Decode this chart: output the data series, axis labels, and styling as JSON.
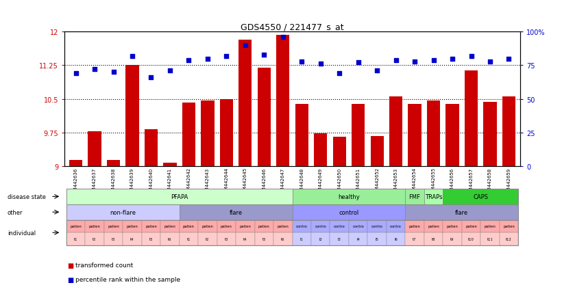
{
  "title": "GDS4550 / 221477_s_at",
  "samples": [
    "GSM442636",
    "GSM442637",
    "GSM442638",
    "GSM442639",
    "GSM442640",
    "GSM442641",
    "GSM442642",
    "GSM442643",
    "GSM442644",
    "GSM442645",
    "GSM442646",
    "GSM442647",
    "GSM442648",
    "GSM442649",
    "GSM442650",
    "GSM442651",
    "GSM442652",
    "GSM442653",
    "GSM442654",
    "GSM442655",
    "GSM442656",
    "GSM442657",
    "GSM442658",
    "GSM442659"
  ],
  "bar_values": [
    9.13,
    9.77,
    9.14,
    11.25,
    9.83,
    9.07,
    10.42,
    10.46,
    10.5,
    11.82,
    11.19,
    11.93,
    10.38,
    9.73,
    9.66,
    10.38,
    9.67,
    10.56,
    10.38,
    10.46,
    10.38,
    11.13,
    10.44,
    10.56
  ],
  "scatter_values": [
    69,
    72,
    70,
    82,
    66,
    71,
    79,
    80,
    82,
    90,
    83,
    96,
    78,
    76,
    69,
    77,
    71,
    79,
    78,
    79,
    80,
    82,
    78,
    80
  ],
  "ylim_left": [
    9.0,
    12.0
  ],
  "ylim_right": [
    0,
    100
  ],
  "yticks_left": [
    9.0,
    9.75,
    10.5,
    11.25,
    12.0
  ],
  "yticks_right": [
    0,
    25,
    50,
    75,
    100
  ],
  "ytick_labels_left": [
    "9",
    "9.75",
    "10.5",
    "11.25",
    "12"
  ],
  "ytick_labels_right": [
    "0",
    "25",
    "50",
    "75",
    "100%"
  ],
  "hlines": [
    9.75,
    10.5,
    11.25
  ],
  "bar_color": "#CC0000",
  "scatter_color": "#0000CC",
  "bar_width": 0.7,
  "disease_state_groups": [
    {
      "label": "PFAPA",
      "start": 0,
      "end": 11,
      "color": "#CCFFCC"
    },
    {
      "label": "healthy",
      "start": 12,
      "end": 17,
      "color": "#99EE99"
    },
    {
      "label": "FMF",
      "start": 18,
      "end": 18,
      "color": "#99EE99"
    },
    {
      "label": "TRAPs",
      "start": 19,
      "end": 19,
      "color": "#AAFFAA"
    },
    {
      "label": "CAPS",
      "start": 20,
      "end": 23,
      "color": "#33CC33"
    }
  ],
  "other_groups": [
    {
      "label": "non-flare",
      "start": 0,
      "end": 5,
      "color": "#CCCCFF"
    },
    {
      "label": "flare",
      "start": 6,
      "end": 11,
      "color": "#9999CC"
    },
    {
      "label": "control",
      "start": 12,
      "end": 17,
      "color": "#9999FF"
    },
    {
      "label": "flare",
      "start": 18,
      "end": 23,
      "color": "#9999CC"
    }
  ],
  "individual_labels": [
    [
      "patien",
      "t1"
    ],
    [
      "patien",
      "t2"
    ],
    [
      "patien",
      "t3"
    ],
    [
      "patien",
      "t4"
    ],
    [
      "patien",
      "t5"
    ],
    [
      "patien",
      "t6"
    ],
    [
      "patien",
      "t1"
    ],
    [
      "patien",
      "t2"
    ],
    [
      "patien",
      "t3"
    ],
    [
      "patien",
      "t4"
    ],
    [
      "patien",
      "t5"
    ],
    [
      "patien",
      "t6"
    ],
    [
      "contro",
      "l1"
    ],
    [
      "contro",
      "l2"
    ],
    [
      "contro",
      "l3"
    ],
    [
      "contro",
      "l4"
    ],
    [
      "contro",
      "l5"
    ],
    [
      "contro",
      "l6"
    ],
    [
      "patien",
      "t7"
    ],
    [
      "patien",
      "t8"
    ],
    [
      "patien",
      "t9"
    ],
    [
      "patien",
      "t10"
    ],
    [
      "patien",
      "t11"
    ],
    [
      "patien",
      "t12"
    ]
  ],
  "individual_colors_top": [
    "#FFAAAA",
    "#FFAAAA",
    "#FFAAAA",
    "#FFAAAA",
    "#FFAAAA",
    "#FFAAAA",
    "#FFAAAA",
    "#FFAAAA",
    "#FFAAAA",
    "#FFAAAA",
    "#FFAAAA",
    "#FFAAAA",
    "#AAAAFF",
    "#AAAAFF",
    "#AAAAFF",
    "#AAAAFF",
    "#AAAAFF",
    "#AAAAFF",
    "#FFAAAA",
    "#FFAAAA",
    "#FFAAAA",
    "#FFAAAA",
    "#FFAAAA",
    "#FFAAAA"
  ],
  "individual_colors_bot": [
    "#FFCCCC",
    "#FFCCCC",
    "#FFCCCC",
    "#FFCCCC",
    "#FFCCCC",
    "#FFCCCC",
    "#FFCCCC",
    "#FFCCCC",
    "#FFCCCC",
    "#FFCCCC",
    "#FFCCCC",
    "#FFCCCC",
    "#CCCCFF",
    "#CCCCFF",
    "#CCCCFF",
    "#CCCCFF",
    "#CCCCFF",
    "#CCCCFF",
    "#FFCCCC",
    "#FFCCCC",
    "#FFCCCC",
    "#FFCCCC",
    "#FFCCCC",
    "#FFCCCC"
  ],
  "row_labels": [
    "disease state",
    "other",
    "individual"
  ],
  "legend_items": [
    {
      "color": "#CC0000",
      "label": "transformed count"
    },
    {
      "color": "#0000CC",
      "label": "percentile rank within the sample"
    }
  ],
  "bg_color": "#FFFFFF",
  "axis_label_color_left": "#CC0000",
  "axis_label_color_right": "#0000CC"
}
